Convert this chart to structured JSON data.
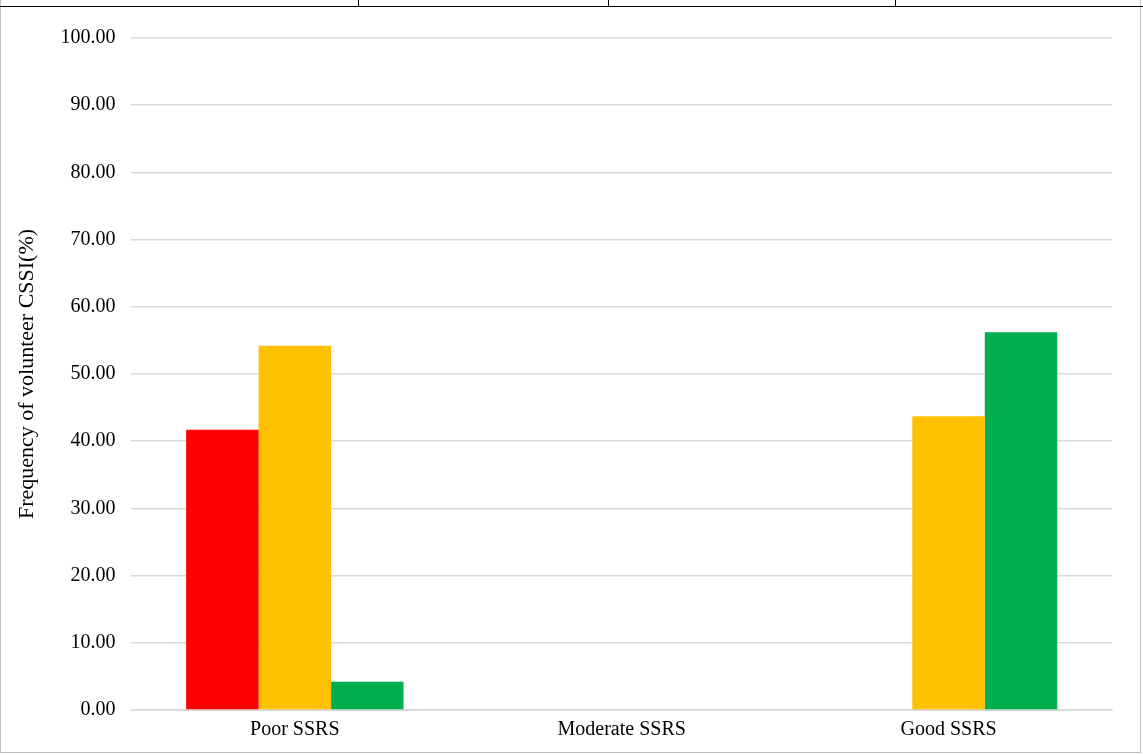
{
  "chart_data": {
    "type": "bar",
    "ylabel": "Frequency of volunteer CSSI(%)",
    "categories": [
      "Poor SSRS",
      "Moderate SSRS",
      "Good SSRS"
    ],
    "series": [
      {
        "color": "#ff0000",
        "values": [
          41.7,
          0,
          0
        ]
      },
      {
        "color": "#ffc000",
        "values": [
          54.2,
          0,
          43.7
        ]
      },
      {
        "color": "#00b050",
        "values": [
          4.2,
          0,
          56.2
        ]
      }
    ],
    "ylim": [
      0,
      100
    ],
    "yticks": [
      {
        "value": 0,
        "label": "0.00"
      },
      {
        "value": 10,
        "label": "10.00"
      },
      {
        "value": 20,
        "label": "20.00"
      },
      {
        "value": 30,
        "label": "30.00"
      },
      {
        "value": 40,
        "label": "40.00"
      },
      {
        "value": 50,
        "label": "50.00"
      },
      {
        "value": 60,
        "label": "60.00"
      },
      {
        "value": 70,
        "label": "70.00"
      },
      {
        "value": 80,
        "label": "80.00"
      },
      {
        "value": 90,
        "label": "90.00"
      },
      {
        "value": 100,
        "label": "100.00"
      }
    ],
    "grid": "y",
    "legend": false
  }
}
